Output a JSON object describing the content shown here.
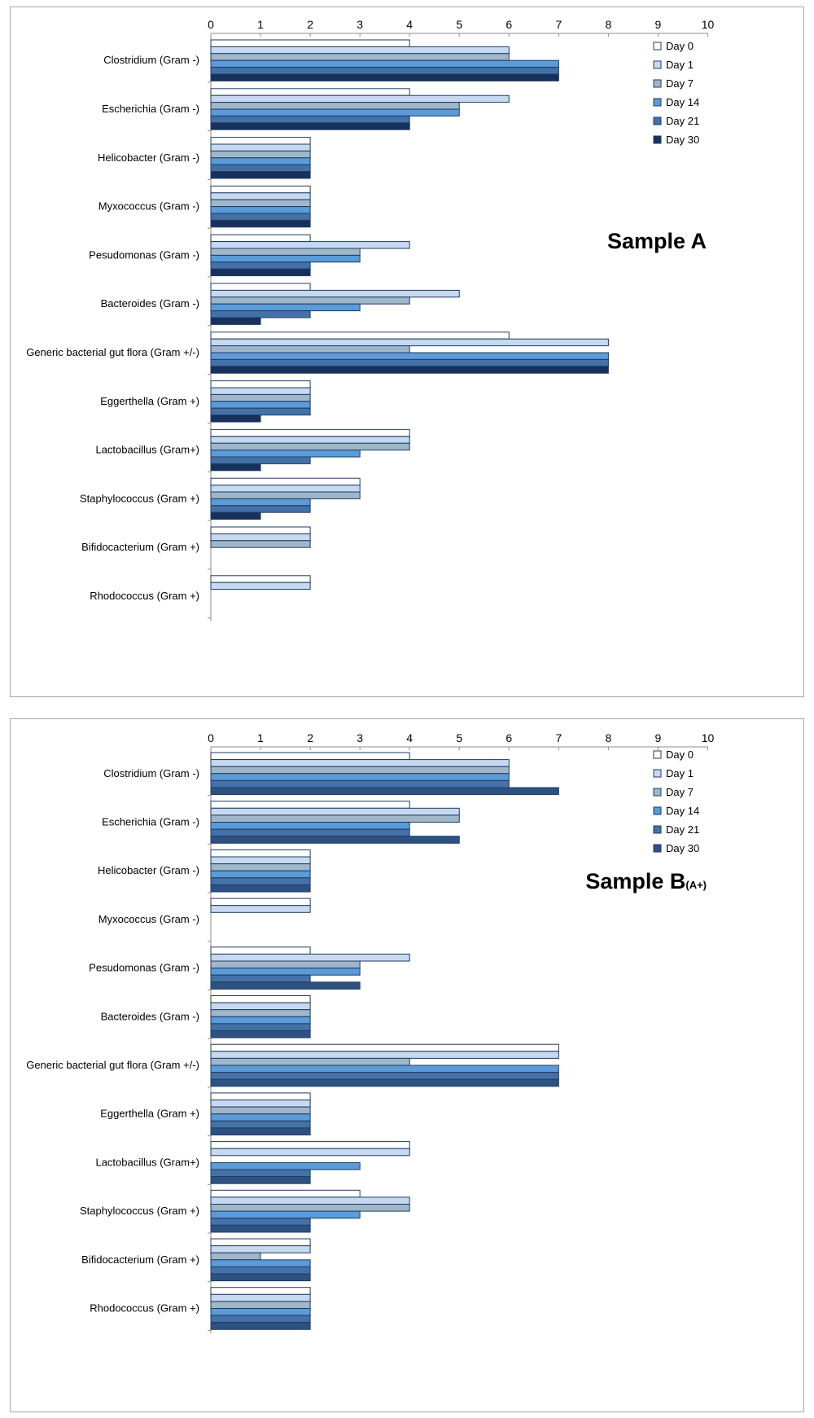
{
  "chart_data": [
    {
      "type": "bar",
      "orientation": "horizontal",
      "title": "Sample A",
      "title_suffix": "",
      "xlim": [
        0,
        10
      ],
      "xticks": [
        0,
        1,
        2,
        3,
        4,
        5,
        6,
        7,
        8,
        9,
        10
      ],
      "legend_position": "top-right",
      "categories": [
        "Clostridium (Gram -)",
        "Escherichia (Gram -)",
        "Helicobacter (Gram -)",
        "Myxococcus (Gram -)",
        "Pesudomonas (Gram -)",
        "Bacteroides (Gram -)",
        "Generic bacterial gut flora (Gram +/-)",
        "Eggerthella (Gram +)",
        "Lactobacillus (Gram+)",
        "Staphylococcus (Gram +)",
        "Bifidocacterium (Gram +)",
        "Rhodococcus (Gram +)"
      ],
      "series": [
        {
          "name": "Day 0",
          "color": "#ffffff",
          "values": [
            4,
            4,
            2,
            2,
            2,
            2,
            6,
            2,
            4,
            3,
            2,
            2
          ]
        },
        {
          "name": "Day 1",
          "color": "#c6d9f0",
          "values": [
            6,
            6,
            2,
            2,
            4,
            5,
            8,
            2,
            4,
            3,
            2,
            2
          ]
        },
        {
          "name": "Day 7",
          "color": "#9fb7c9",
          "values": [
            6,
            5,
            2,
            2,
            3,
            4,
            4,
            2,
            4,
            3,
            2,
            0
          ]
        },
        {
          "name": "Day 14",
          "color": "#5a9bd8",
          "values": [
            7,
            5,
            2,
            2,
            3,
            3,
            8,
            2,
            3,
            2,
            0,
            0
          ]
        },
        {
          "name": "Day 21",
          "color": "#4472a8",
          "values": [
            7,
            4,
            2,
            2,
            2,
            2,
            8,
            2,
            2,
            2,
            0,
            0
          ]
        },
        {
          "name": "Day 30",
          "color": "#16325c",
          "values": [
            7,
            4,
            2,
            2,
            2,
            1,
            8,
            1,
            1,
            1,
            0,
            0
          ]
        }
      ]
    },
    {
      "type": "bar",
      "orientation": "horizontal",
      "title": "Sample B",
      "title_suffix": "(A+)",
      "xlim": [
        0,
        10
      ],
      "xticks": [
        0,
        1,
        2,
        3,
        4,
        5,
        6,
        7,
        8,
        9,
        10
      ],
      "legend_position": "top-right",
      "categories": [
        "Clostridium (Gram -)",
        "Escherichia (Gram -)",
        "Helicobacter (Gram -)",
        "Myxococcus (Gram -)",
        "Pesudomonas (Gram -)",
        "Bacteroides (Gram -)",
        "Generic bacterial gut flora (Gram +/-)",
        "Eggerthella (Gram +)",
        "Lactobacillus (Gram+)",
        "Staphylococcus (Gram +)",
        "Bifidocacterium (Gram +)",
        "Rhodococcus (Gram +)"
      ],
      "series": [
        {
          "name": "Day 0",
          "color": "#ffffff",
          "values": [
            4,
            4,
            2,
            2,
            2,
            2,
            7,
            2,
            4,
            3,
            2,
            2
          ]
        },
        {
          "name": "Day 1",
          "color": "#c6d9f0",
          "values": [
            6,
            5,
            2,
            2,
            4,
            2,
            7,
            2,
            4,
            4,
            2,
            2
          ]
        },
        {
          "name": "Day 7",
          "color": "#9fb7c9",
          "values": [
            6,
            5,
            2,
            0,
            3,
            2,
            4,
            2,
            0,
            4,
            1,
            2
          ]
        },
        {
          "name": "Day 14",
          "color": "#5a9bd8",
          "values": [
            6,
            4,
            2,
            0,
            3,
            2,
            7,
            2,
            3,
            3,
            2,
            2
          ]
        },
        {
          "name": "Day 21",
          "color": "#4472a8",
          "values": [
            6,
            4,
            2,
            0,
            2,
            2,
            7,
            2,
            2,
            2,
            2,
            2
          ]
        },
        {
          "name": "Day 30",
          "color": "#2d5282",
          "values": [
            7,
            5,
            2,
            0,
            3,
            2,
            7,
            2,
            2,
            2,
            2,
            2
          ]
        }
      ]
    }
  ]
}
